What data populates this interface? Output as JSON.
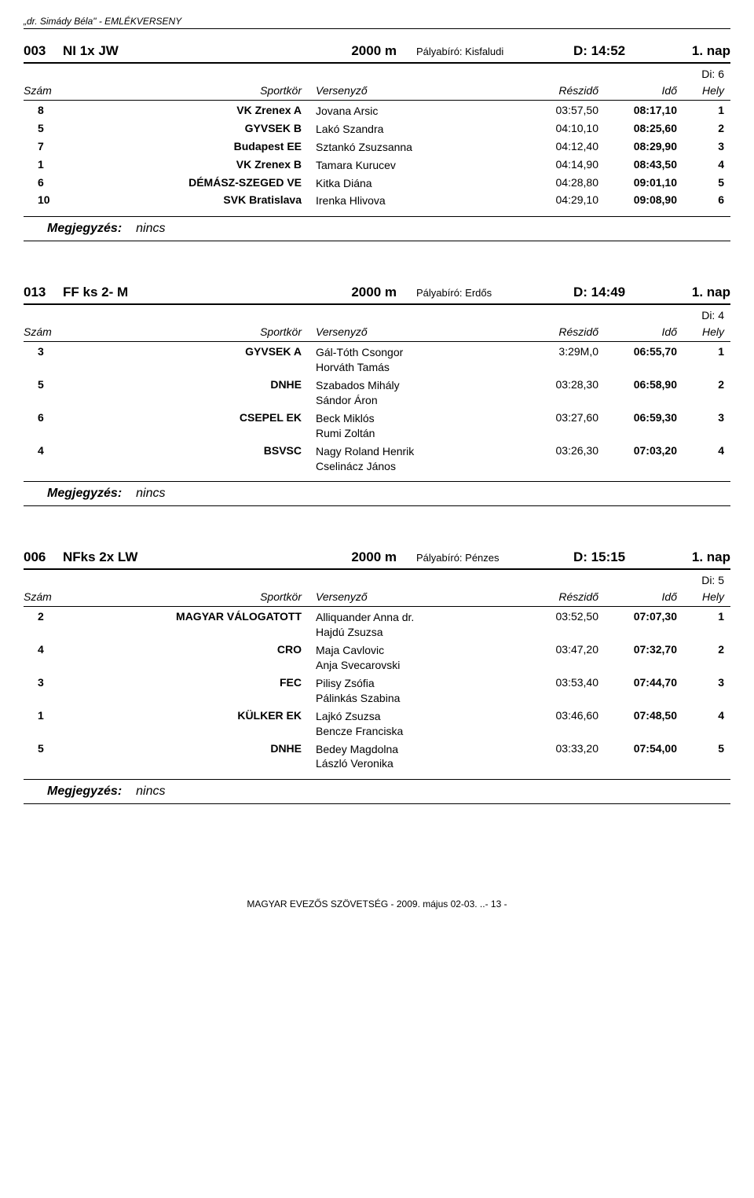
{
  "page_header": "„dr. Simády Béla\"  -   EMLÉKVERSENY",
  "col_labels": {
    "num": "Szám",
    "club": "Sportkör",
    "name": "Versenyző",
    "split": "Részidő",
    "time": "Idő",
    "place": "Hely"
  },
  "note": {
    "label": "Megjegyzés:",
    "value": "nincs"
  },
  "footer": "MAGYAR EVEZŐS SZÖVETSÉG  - 2009. május 02-03. ..-  13  -",
  "events": [
    {
      "num": "003",
      "name": "NI 1x JW",
      "dist": "2000 m",
      "ref": "Pályabíró: Kisfaludi",
      "start": "D:  14:52",
      "day": "1. nap",
      "di": "Di: 6",
      "rows": [
        {
          "n": "8",
          "club": "VK Zrenex A",
          "names": [
            "Jovana Arsic"
          ],
          "split": "03:57,50",
          "time": "08:17,10",
          "place": "1"
        },
        {
          "n": "5",
          "club": "GYVSEK B",
          "names": [
            "Lakó Szandra"
          ],
          "split": "04:10,10",
          "time": "08:25,60",
          "place": "2"
        },
        {
          "n": "7",
          "club": "Budapest EE",
          "names": [
            "Sztankó Zsuzsanna"
          ],
          "split": "04:12,40",
          "time": "08:29,90",
          "place": "3"
        },
        {
          "n": "1",
          "club": "VK Zrenex B",
          "names": [
            "Tamara Kurucev"
          ],
          "split": "04:14,90",
          "time": "08:43,50",
          "place": "4"
        },
        {
          "n": "6",
          "club": "DÉMÁSZ-SZEGED VE",
          "names": [
            "Kitka Diána"
          ],
          "split": "04:28,80",
          "time": "09:01,10",
          "place": "5"
        },
        {
          "n": "10",
          "club": "SVK Bratislava",
          "names": [
            "Irenka Hlivova"
          ],
          "split": "04:29,10",
          "time": "09:08,90",
          "place": "6"
        }
      ]
    },
    {
      "num": "013",
      "name": "FF ks 2- M",
      "dist": "2000 m",
      "ref": "Pályabíró: Erdős",
      "start": "D:  14:49",
      "day": "1. nap",
      "di": "Di: 4",
      "rows": [
        {
          "n": "3",
          "club": "GYVSEK A",
          "names": [
            "Gál-Tóth Csongor",
            "Horváth Tamás"
          ],
          "split": "3:29M,0",
          "time": "06:55,70",
          "place": "1"
        },
        {
          "n": "5",
          "club": "DNHE",
          "names": [
            "Szabados Mihály",
            "Sándor Áron"
          ],
          "split": "03:28,30",
          "time": "06:58,90",
          "place": "2"
        },
        {
          "n": "6",
          "club": "CSEPEL EK",
          "names": [
            "Beck Miklós",
            "Rumi Zoltán"
          ],
          "split": "03:27,60",
          "time": "06:59,30",
          "place": "3"
        },
        {
          "n": "4",
          "club": "BSVSC",
          "names": [
            "Nagy Roland Henrik",
            "Cselinácz János"
          ],
          "split": "03:26,30",
          "time": "07:03,20",
          "place": "4"
        }
      ]
    },
    {
      "num": "006",
      "name": "NFks 2x LW",
      "dist": "2000 m",
      "ref": "Pályabíró: Pénzes",
      "start": "D:  15:15",
      "day": "1. nap",
      "di": "Di: 5",
      "rows": [
        {
          "n": "2",
          "club": "MAGYAR VÁLOGATOTT",
          "names": [
            "Alliquander Anna dr.",
            "Hajdú Zsuzsa"
          ],
          "split": "03:52,50",
          "time": "07:07,30",
          "place": "1"
        },
        {
          "n": "4",
          "club": "CRO",
          "names": [
            "Maja Cavlovic",
            "Anja Svecarovski"
          ],
          "split": "03:47,20",
          "time": "07:32,70",
          "place": "2"
        },
        {
          "n": "3",
          "club": "FEC",
          "names": [
            "Pilisy Zsófia",
            "Pálinkás Szabina"
          ],
          "split": "03:53,40",
          "time": "07:44,70",
          "place": "3"
        },
        {
          "n": "1",
          "club": "KÜLKER EK",
          "names": [
            "Lajkó Zsuzsa",
            "Bencze Franciska"
          ],
          "split": "03:46,60",
          "time": "07:48,50",
          "place": "4"
        },
        {
          "n": "5",
          "club": "DNHE",
          "names": [
            "Bedey Magdolna",
            "László Veronika"
          ],
          "split": "03:33,20",
          "time": "07:54,00",
          "place": "5"
        }
      ]
    }
  ]
}
